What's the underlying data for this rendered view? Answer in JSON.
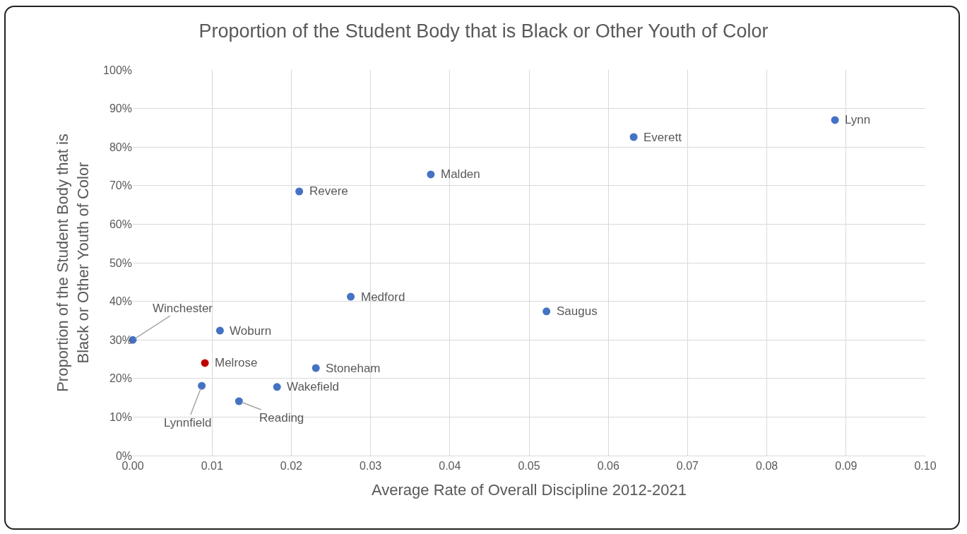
{
  "chart_data": {
    "type": "scatter",
    "title": "Proportion of the Student Body that is Black or Other Youth of Color",
    "xlabel": "Average Rate of Overall Discipline 2012-2021",
    "ylabel": "Proportion of the Student Body that is Black or Other Youth of Color",
    "series": [
      {
        "name": "Winchester",
        "color": "#4472c4",
        "x": [
          0.0
        ],
        "values": [
          30.0
        ]
      },
      {
        "name": "Lynnfield",
        "color": "#4472c4",
        "x": [
          0.0087
        ],
        "values": [
          18.1
        ]
      },
      {
        "name": "Melrose",
        "color": "#c00000",
        "x": [
          0.0091
        ],
        "values": [
          24.0
        ]
      },
      {
        "name": "Woburn",
        "color": "#4472c4",
        "x": [
          0.011
        ],
        "values": [
          32.4
        ]
      },
      {
        "name": "Reading",
        "color": "#4472c4",
        "x": [
          0.0134
        ],
        "values": [
          14.1
        ]
      },
      {
        "name": "Wakefield",
        "color": "#4472c4",
        "x": [
          0.0182
        ],
        "values": [
          17.8
        ]
      },
      {
        "name": "Revere",
        "color": "#4472c4",
        "x": [
          0.021
        ],
        "values": [
          68.5
        ]
      },
      {
        "name": "Stoneham",
        "color": "#4472c4",
        "x": [
          0.0231
        ],
        "values": [
          22.7
        ]
      },
      {
        "name": "Medford",
        "color": "#4472c4",
        "x": [
          0.0275
        ],
        "values": [
          41.2
        ]
      },
      {
        "name": "Malden",
        "color": "#4472c4",
        "x": [
          0.0376
        ],
        "values": [
          72.9
        ]
      },
      {
        "name": "Saugus",
        "color": "#4472c4",
        "x": [
          0.0522
        ],
        "values": [
          37.4
        ]
      },
      {
        "name": "Everett",
        "color": "#4472c4",
        "x": [
          0.0632
        ],
        "values": [
          82.6
        ]
      },
      {
        "name": "Lynn",
        "color": "#4472c4",
        "x": [
          0.0886
        ],
        "values": [
          87.0
        ]
      }
    ],
    "xlim": [
      0,
      0.1
    ],
    "xticks": [
      {
        "value": 0,
        "label": "0.00"
      },
      {
        "value": 0.01,
        "label": "0.01"
      },
      {
        "value": 0.02,
        "label": "0.02"
      },
      {
        "value": 0.03,
        "label": "0.03"
      },
      {
        "value": 0.04,
        "label": "0.04"
      },
      {
        "value": 0.05,
        "label": "0.05"
      },
      {
        "value": 0.06,
        "label": "0.06"
      },
      {
        "value": 0.07,
        "label": "0.07"
      },
      {
        "value": 0.08,
        "label": "0.08"
      },
      {
        "value": 0.09,
        "label": "0.09"
      },
      {
        "value": 0.1,
        "label": "0.10"
      }
    ],
    "ylim": [
      0,
      100
    ],
    "yticks": [
      {
        "value": 0,
        "label": "0%"
      },
      {
        "value": 10,
        "label": "10%"
      },
      {
        "value": 20,
        "label": "20%"
      },
      {
        "value": 30,
        "label": "30%"
      },
      {
        "value": 40,
        "label": "40%"
      },
      {
        "value": 50,
        "label": "50%"
      },
      {
        "value": 60,
        "label": "60%"
      },
      {
        "value": 70,
        "label": "70%"
      },
      {
        "value": 80,
        "label": "80%"
      },
      {
        "value": 90,
        "label": "90%"
      },
      {
        "value": 100,
        "label": "100%"
      }
    ],
    "grid": true,
    "legend": false,
    "marker": "circle"
  }
}
